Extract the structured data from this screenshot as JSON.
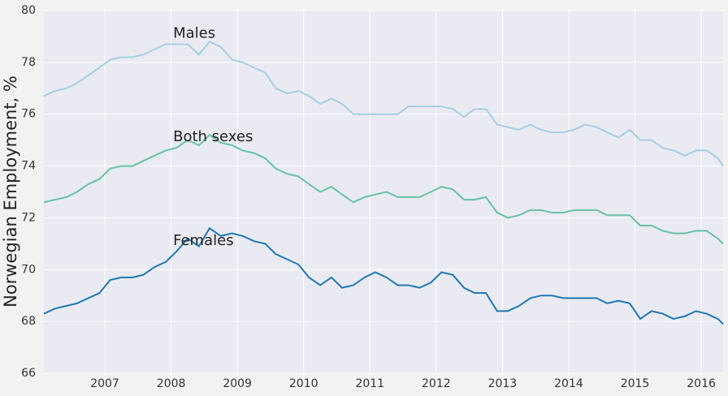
{
  "chart_data": {
    "type": "line",
    "ylabel": "Norwegian Employment, %",
    "x": [
      2006.08,
      2006.25,
      2006.42,
      2006.58,
      2006.75,
      2006.92,
      2007.08,
      2007.25,
      2007.42,
      2007.58,
      2007.75,
      2007.92,
      2008.08,
      2008.25,
      2008.42,
      2008.58,
      2008.75,
      2008.92,
      2009.08,
      2009.25,
      2009.42,
      2009.58,
      2009.75,
      2009.92,
      2010.08,
      2010.25,
      2010.42,
      2010.58,
      2010.75,
      2010.92,
      2011.08,
      2011.25,
      2011.42,
      2011.58,
      2011.75,
      2011.92,
      2012.08,
      2012.25,
      2012.42,
      2012.58,
      2012.75,
      2012.92,
      2013.08,
      2013.25,
      2013.42,
      2013.58,
      2013.75,
      2013.92,
      2014.08,
      2014.25,
      2014.42,
      2014.58,
      2014.75,
      2014.92,
      2015.08,
      2015.25,
      2015.42,
      2015.58,
      2015.75,
      2015.92,
      2016.08,
      2016.25,
      2016.33
    ],
    "series": [
      {
        "name": "Males",
        "color": "#a6cee3",
        "values": [
          76.7,
          76.9,
          77.0,
          77.2,
          77.5,
          77.8,
          78.1,
          78.2,
          78.2,
          78.3,
          78.5,
          78.7,
          78.7,
          78.7,
          78.3,
          78.8,
          78.6,
          78.1,
          78.0,
          77.8,
          77.6,
          77.0,
          76.8,
          76.9,
          76.7,
          76.4,
          76.6,
          76.4,
          76.0,
          76.0,
          76.0,
          76.0,
          76.0,
          76.3,
          76.3,
          76.3,
          76.3,
          76.2,
          75.9,
          76.2,
          76.2,
          75.6,
          75.5,
          75.4,
          75.6,
          75.4,
          75.3,
          75.3,
          75.4,
          75.6,
          75.5,
          75.3,
          75.1,
          75.4,
          75.0,
          75.0,
          74.7,
          74.6,
          74.4,
          74.6,
          74.6,
          74.3,
          74.0
        ]
      },
      {
        "name": "Both sexes",
        "color": "#66c2a5",
        "values": [
          72.6,
          72.7,
          72.8,
          73.0,
          73.3,
          73.5,
          73.9,
          74.0,
          74.0,
          74.2,
          74.4,
          74.6,
          74.7,
          75.0,
          74.8,
          75.2,
          74.9,
          74.8,
          74.6,
          74.5,
          74.3,
          73.9,
          73.7,
          73.6,
          73.3,
          73.0,
          73.2,
          72.9,
          72.6,
          72.8,
          72.9,
          73.0,
          72.8,
          72.8,
          72.8,
          73.0,
          73.2,
          73.1,
          72.7,
          72.7,
          72.8,
          72.2,
          72.0,
          72.1,
          72.3,
          72.3,
          72.2,
          72.2,
          72.3,
          72.3,
          72.3,
          72.1,
          72.1,
          72.1,
          71.7,
          71.7,
          71.5,
          71.4,
          71.4,
          71.5,
          71.5,
          71.2,
          71.0
        ]
      },
      {
        "name": "Females",
        "color": "#1f78b4",
        "values": [
          68.3,
          68.5,
          68.6,
          68.7,
          68.9,
          69.1,
          69.6,
          69.7,
          69.7,
          69.8,
          70.1,
          70.3,
          70.7,
          71.2,
          70.9,
          71.6,
          71.3,
          71.4,
          71.3,
          71.1,
          71.0,
          70.6,
          70.4,
          70.2,
          69.7,
          69.4,
          69.7,
          69.3,
          69.4,
          69.7,
          69.9,
          69.7,
          69.4,
          69.4,
          69.3,
          69.5,
          69.9,
          69.8,
          69.3,
          69.1,
          69.1,
          68.4,
          68.4,
          68.6,
          68.9,
          69.0,
          69.0,
          68.9,
          68.9,
          68.9,
          68.9,
          68.7,
          68.8,
          68.7,
          68.1,
          68.4,
          68.3,
          68.1,
          68.2,
          68.4,
          68.3,
          68.1,
          67.9
        ]
      }
    ],
    "xlim": [
      2006.08,
      2016.33
    ],
    "xticks": [
      2007,
      2008,
      2009,
      2010,
      2011,
      2012,
      2013,
      2014,
      2015,
      2016
    ],
    "ylim": [
      66,
      80
    ],
    "yticks": [
      66,
      68,
      70,
      72,
      74,
      76,
      78,
      80
    ],
    "grid": true
  }
}
